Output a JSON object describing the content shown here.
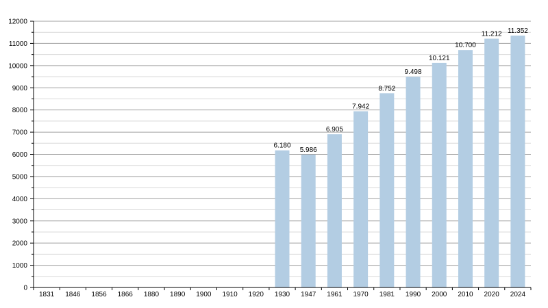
{
  "chart_data": {
    "type": "bar",
    "title": "",
    "xlabel": "",
    "ylabel": "",
    "ylim": [
      0,
      12000
    ],
    "y_ticks": [
      "0",
      "1000",
      "2000",
      "3000",
      "4000",
      "5000",
      "6000",
      "7000",
      "8000",
      "9000",
      "10000",
      "11000",
      "12000"
    ],
    "grid": true,
    "categories": [
      "1831",
      "1846",
      "1856",
      "1866",
      "1880",
      "1890",
      "1900",
      "1910",
      "1920",
      "1930",
      "1947",
      "1961",
      "1970",
      "1981",
      "1990",
      "2000",
      "2010",
      "2020",
      "2024"
    ],
    "values": [
      null,
      null,
      null,
      null,
      null,
      null,
      null,
      null,
      null,
      6180,
      5986,
      6905,
      7942,
      8752,
      9498,
      10121,
      10700,
      11212,
      11352
    ],
    "value_labels": [
      "",
      "",
      "",
      "",
      "",
      "",
      "",
      "",
      "",
      "6.180",
      "5.986",
      "6.905",
      "7.942",
      "8.752",
      "9.498",
      "10.121",
      "10.700",
      "11.212",
      "11.352"
    ],
    "bar_color": "#b3cde3",
    "grid_color": "#a0a0a0",
    "minor_grid_color": "#d8d8d8"
  }
}
